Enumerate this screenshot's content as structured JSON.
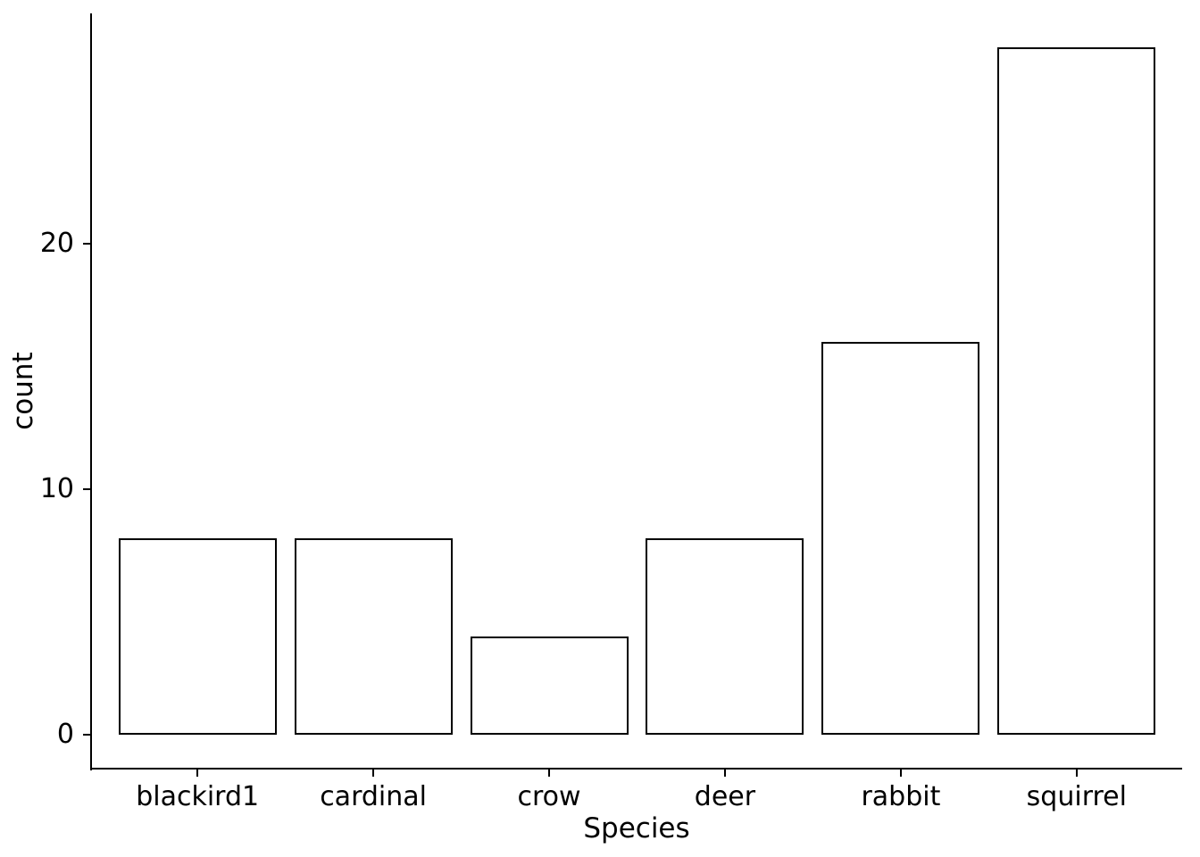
{
  "chart_data": {
    "type": "bar",
    "title": "",
    "categories": [
      "blackird1",
      "cardinal",
      "crow",
      "deer",
      "rabbit",
      "squirrel"
    ],
    "values": [
      8,
      8,
      4,
      8,
      16,
      28
    ],
    "xlabel": "Species",
    "ylabel": "count",
    "y_ticks": [
      0,
      10,
      20
    ],
    "ylim": [
      -1.4,
      29.4
    ],
    "bar_fill": "#ffffff",
    "bar_stroke": "#000000",
    "axis_color": "#000000",
    "text_color": "#000000",
    "background": "#ffffff",
    "grid": false,
    "legend": "none"
  }
}
